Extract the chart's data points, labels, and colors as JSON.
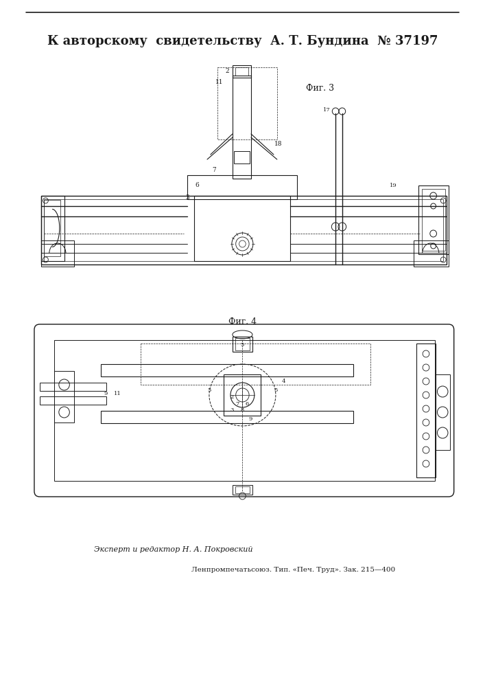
{
  "bg_color": "#ffffff",
  "line_color": "#1a1a1a",
  "title_text": "К авторскому  свидетельству  А. Т. Бундина  № 37197",
  "fig3_label": "Фиг. 3",
  "fig4_label": "Фиг. 4",
  "footer_left": "Эксперт и редактор Н. А. Покровский",
  "footer_right": "Ленпромпечатьсоюз. Тип. «Печ. Труд». Зак. 215—400"
}
